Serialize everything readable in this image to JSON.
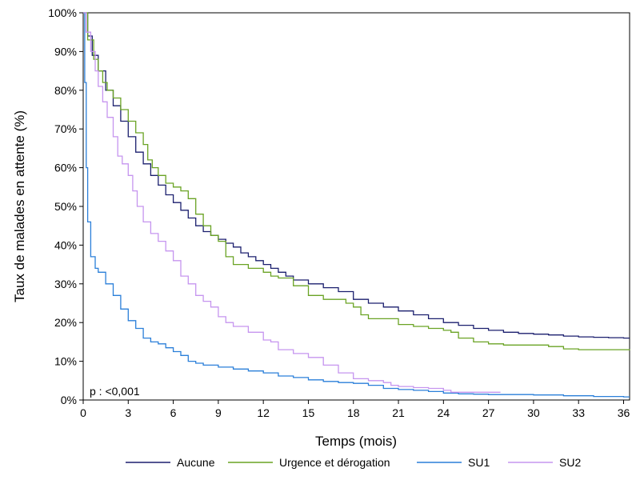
{
  "chart_data": {
    "type": "line",
    "title": "",
    "xlabel": "Temps (mois)",
    "ylabel": "Taux de malades en attente (%)",
    "xlim": [
      0,
      36.4
    ],
    "ylim": [
      0,
      100
    ],
    "x_ticks": [
      0,
      3,
      6,
      9,
      12,
      15,
      18,
      21,
      24,
      27,
      30,
      33,
      36
    ],
    "y_ticks": [
      0,
      10,
      20,
      30,
      40,
      50,
      60,
      70,
      80,
      90,
      100
    ],
    "y_tick_labels": [
      "0%",
      "10%",
      "20%",
      "30%",
      "40%",
      "50%",
      "60%",
      "70%",
      "80%",
      "90%",
      "100%"
    ],
    "grid": false,
    "legend_position": "bottom",
    "annotation": "p : <0,001",
    "series": [
      {
        "name": "Aucune",
        "color": "#1b1f6e",
        "points": [
          [
            0,
            100
          ],
          [
            0.3,
            94
          ],
          [
            0.6,
            89
          ],
          [
            1,
            85
          ],
          [
            1.5,
            80
          ],
          [
            2,
            76
          ],
          [
            2.5,
            72
          ],
          [
            3,
            68
          ],
          [
            3.5,
            64
          ],
          [
            4,
            61
          ],
          [
            4.5,
            58
          ],
          [
            5,
            55.5
          ],
          [
            5.5,
            53
          ],
          [
            6,
            51
          ],
          [
            6.5,
            49
          ],
          [
            7,
            47
          ],
          [
            7.5,
            45
          ],
          [
            8,
            43.5
          ],
          [
            8.5,
            42.5
          ],
          [
            9,
            41.5
          ],
          [
            9.5,
            40.5
          ],
          [
            10,
            39.5
          ],
          [
            10.5,
            38
          ],
          [
            11,
            37
          ],
          [
            11.5,
            36
          ],
          [
            12,
            35
          ],
          [
            12.5,
            34
          ],
          [
            13,
            33
          ],
          [
            13.5,
            32
          ],
          [
            14,
            31
          ],
          [
            15,
            30
          ],
          [
            16,
            29
          ],
          [
            17,
            28
          ],
          [
            18,
            26
          ],
          [
            19,
            25
          ],
          [
            20,
            24
          ],
          [
            21,
            23
          ],
          [
            22,
            22
          ],
          [
            23,
            21
          ],
          [
            24,
            20
          ],
          [
            25,
            19.3
          ],
          [
            26,
            18.5
          ],
          [
            27,
            18
          ],
          [
            28,
            17.5
          ],
          [
            29,
            17.2
          ],
          [
            30,
            17
          ],
          [
            31,
            16.8
          ],
          [
            32,
            16.5
          ],
          [
            33,
            16.3
          ],
          [
            34,
            16.2
          ],
          [
            35,
            16.1
          ],
          [
            36,
            16
          ],
          [
            36.4,
            16
          ]
        ]
      },
      {
        "name": "Urgence et dérogation",
        "color": "#6aa324",
        "points": [
          [
            0,
            100
          ],
          [
            0.3,
            93
          ],
          [
            0.7,
            88
          ],
          [
            1,
            85
          ],
          [
            1.3,
            82
          ],
          [
            1.6,
            80
          ],
          [
            2,
            78
          ],
          [
            2.5,
            75
          ],
          [
            3,
            72
          ],
          [
            3.5,
            69
          ],
          [
            4,
            66
          ],
          [
            4.3,
            62
          ],
          [
            4.6,
            60
          ],
          [
            5,
            58
          ],
          [
            5.5,
            56
          ],
          [
            6,
            55
          ],
          [
            6.5,
            54
          ],
          [
            7,
            52
          ],
          [
            7.5,
            48
          ],
          [
            8,
            45
          ],
          [
            8.5,
            42.5
          ],
          [
            9,
            41
          ],
          [
            9.5,
            37
          ],
          [
            10,
            35
          ],
          [
            11,
            34
          ],
          [
            12,
            33
          ],
          [
            12.5,
            32
          ],
          [
            13,
            31.5
          ],
          [
            13.8,
            31.5
          ],
          [
            14,
            29.5
          ],
          [
            15,
            27
          ],
          [
            16,
            26
          ],
          [
            17.5,
            25
          ],
          [
            18,
            24
          ],
          [
            18.5,
            22
          ],
          [
            19,
            21
          ],
          [
            20,
            21
          ],
          [
            20.5,
            21
          ],
          [
            21,
            19.5
          ],
          [
            22,
            19
          ],
          [
            23,
            18.5
          ],
          [
            24,
            18
          ],
          [
            24.5,
            17.5
          ],
          [
            25,
            16
          ],
          [
            26,
            15
          ],
          [
            27,
            14.5
          ],
          [
            28,
            14.2
          ],
          [
            30,
            14.2
          ],
          [
            31,
            13.8
          ],
          [
            32,
            13.2
          ],
          [
            33,
            13
          ],
          [
            35,
            13
          ],
          [
            36,
            13
          ],
          [
            36.4,
            12.8
          ]
        ]
      },
      {
        "name": "SU1",
        "color": "#2a7fd9",
        "points": [
          [
            0,
            100
          ],
          [
            0.1,
            82
          ],
          [
            0.2,
            60
          ],
          [
            0.3,
            46
          ],
          [
            0.5,
            37
          ],
          [
            0.8,
            34
          ],
          [
            1,
            33
          ],
          [
            1.5,
            30
          ],
          [
            2,
            27
          ],
          [
            2.5,
            23.5
          ],
          [
            3,
            20.5
          ],
          [
            3.5,
            18.5
          ],
          [
            4,
            16
          ],
          [
            4.5,
            15
          ],
          [
            5,
            14.5
          ],
          [
            5.5,
            13.5
          ],
          [
            6,
            12.5
          ],
          [
            6.5,
            11.5
          ],
          [
            7,
            10
          ],
          [
            7.5,
            9.5
          ],
          [
            8,
            9
          ],
          [
            9,
            8.5
          ],
          [
            10,
            8
          ],
          [
            11,
            7.5
          ],
          [
            12,
            7
          ],
          [
            13,
            6.2
          ],
          [
            14,
            5.8
          ],
          [
            15,
            5.2
          ],
          [
            16,
            4.8
          ],
          [
            17,
            4.5
          ],
          [
            18,
            4.3
          ],
          [
            19,
            3.8
          ],
          [
            20,
            3
          ],
          [
            21,
            2.7
          ],
          [
            22,
            2.5
          ],
          [
            23,
            2.2
          ],
          [
            24,
            1.8
          ],
          [
            25,
            1.6
          ],
          [
            26,
            1.5
          ],
          [
            27,
            1.4
          ],
          [
            28,
            1.4
          ],
          [
            30,
            1.3
          ],
          [
            32,
            1.1
          ],
          [
            34,
            0.9
          ],
          [
            36,
            0.8
          ],
          [
            36.4,
            0.8
          ]
        ]
      },
      {
        "name": "SU2",
        "color": "#c695ef",
        "points": [
          [
            0,
            100
          ],
          [
            0.2,
            95
          ],
          [
            0.5,
            90
          ],
          [
            0.8,
            85
          ],
          [
            1,
            81
          ],
          [
            1.3,
            77
          ],
          [
            1.6,
            73
          ],
          [
            2,
            68
          ],
          [
            2.3,
            63
          ],
          [
            2.6,
            61
          ],
          [
            3,
            58
          ],
          [
            3.3,
            54
          ],
          [
            3.6,
            50
          ],
          [
            4,
            46
          ],
          [
            4.5,
            43
          ],
          [
            5,
            41
          ],
          [
            5.5,
            38.5
          ],
          [
            6,
            36
          ],
          [
            6.5,
            32
          ],
          [
            7,
            30
          ],
          [
            7.5,
            27
          ],
          [
            8,
            25.5
          ],
          [
            8.5,
            24
          ],
          [
            9,
            21.5
          ],
          [
            9.5,
            20
          ],
          [
            10,
            19
          ],
          [
            11,
            17.5
          ],
          [
            12,
            15.5
          ],
          [
            12.5,
            15
          ],
          [
            13,
            13
          ],
          [
            14,
            12
          ],
          [
            15,
            11
          ],
          [
            16,
            9
          ],
          [
            17,
            7
          ],
          [
            18,
            5.5
          ],
          [
            19,
            5
          ],
          [
            20,
            4.5
          ],
          [
            20.5,
            3.8
          ],
          [
            21,
            3.5
          ],
          [
            22,
            3.2
          ],
          [
            23,
            3
          ],
          [
            24,
            2.5
          ],
          [
            24.5,
            2
          ],
          [
            25,
            2
          ],
          [
            26,
            2
          ],
          [
            27,
            2
          ],
          [
            27.8,
            2
          ]
        ]
      }
    ]
  }
}
